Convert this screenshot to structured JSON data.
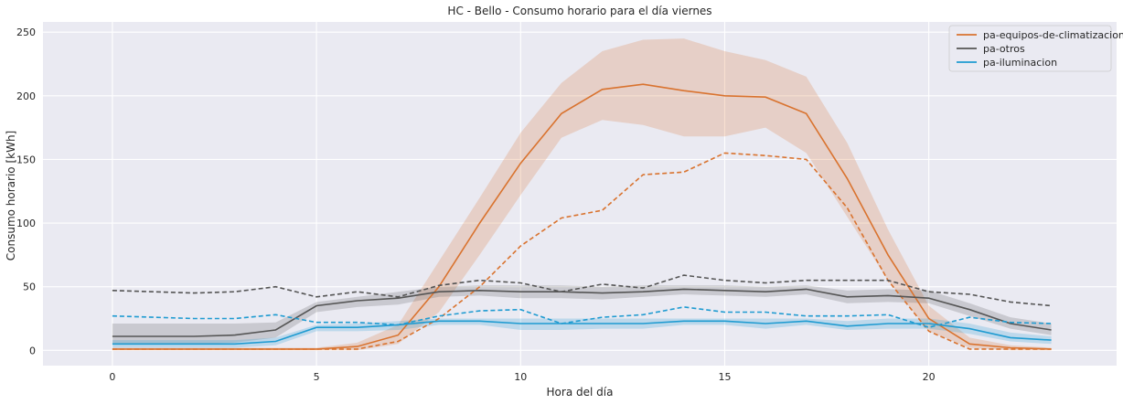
{
  "chart_data": {
    "type": "line",
    "title": "HC - Bello - Consumo horario para el día viernes",
    "xlabel": "Hora del día",
    "ylabel": "Consumo horario [kWh]",
    "xlim": [
      -1.7,
      24.6
    ],
    "ylim": [
      -12,
      258
    ],
    "xticks": [
      0,
      5,
      10,
      15,
      20
    ],
    "yticks": [
      0,
      50,
      100,
      150,
      200,
      250
    ],
    "grid": true,
    "legend_position": "top-right",
    "x": [
      0,
      1,
      2,
      3,
      4,
      5,
      6,
      7,
      8,
      9,
      10,
      11,
      12,
      13,
      14,
      15,
      16,
      17,
      18,
      19,
      20,
      21,
      22,
      23
    ],
    "series": [
      {
        "name": "pa-equipos-de-climatizacion",
        "color": "#d9732f",
        "mean": [
          1,
          1,
          1,
          1,
          1,
          1,
          3,
          12,
          50,
          100,
          147,
          186,
          205,
          209,
          204,
          200,
          199,
          186,
          135,
          75,
          25,
          5,
          2,
          1
        ],
        "lower": [
          0,
          0,
          0,
          0,
          0,
          0,
          0,
          5,
          30,
          75,
          122,
          167,
          181,
          177,
          168,
          168,
          175,
          155,
          105,
          55,
          15,
          2,
          0,
          0
        ],
        "upper": [
          2,
          2,
          2,
          2,
          2,
          2,
          6,
          20,
          70,
          120,
          171,
          210,
          235,
          244,
          245,
          235,
          228,
          215,
          163,
          95,
          35,
          10,
          4,
          2
        ],
        "dashed": [
          1,
          1,
          1,
          1,
          1,
          1,
          1,
          7,
          25,
          50,
          82,
          104,
          110,
          138,
          140,
          155,
          153,
          150,
          112,
          55,
          15,
          1,
          1,
          1
        ]
      },
      {
        "name": "pa-otros",
        "color": "#555555",
        "mean": [
          11,
          11,
          11,
          12,
          16,
          35,
          39,
          41,
          46,
          47,
          46,
          46,
          45,
          46,
          48,
          47,
          46,
          48,
          42,
          43,
          41,
          32,
          21,
          16
        ],
        "lower": [
          5,
          5,
          5,
          6,
          10,
          30,
          34,
          36,
          42,
          43,
          41,
          41,
          40,
          42,
          44,
          43,
          42,
          44,
          37,
          38,
          37,
          27,
          17,
          12
        ],
        "upper": [
          21,
          21,
          21,
          21,
          22,
          38,
          42,
          46,
          50,
          51,
          51,
          51,
          50,
          51,
          51,
          51,
          50,
          51,
          47,
          48,
          47,
          37,
          26,
          21
        ],
        "dashed": [
          47,
          46,
          45,
          46,
          50,
          42,
          46,
          42,
          51,
          55,
          53,
          46,
          52,
          49,
          59,
          55,
          53,
          55,
          55,
          55,
          46,
          44,
          38,
          35
        ]
      },
      {
        "name": "pa-iluminacion",
        "color": "#1f9bd1",
        "mean": [
          5,
          5,
          5,
          5,
          7,
          18,
          18,
          20,
          23,
          23,
          21,
          21,
          21,
          21,
          23,
          23,
          21,
          23,
          19,
          21,
          21,
          17,
          10,
          8
        ],
        "lower": [
          2,
          2,
          2,
          2,
          4,
          15,
          15,
          16,
          20,
          20,
          16,
          16,
          17,
          17,
          20,
          20,
          17,
          20,
          16,
          17,
          17,
          13,
          7,
          5
        ],
        "upper": [
          8,
          8,
          8,
          8,
          10,
          20,
          21,
          23,
          25,
          25,
          25,
          25,
          25,
          25,
          25,
          25,
          25,
          25,
          23,
          25,
          25,
          21,
          14,
          11
        ],
        "dashed": [
          27,
          26,
          25,
          25,
          28,
          22,
          22,
          20,
          27,
          31,
          32,
          21,
          26,
          28,
          34,
          30,
          30,
          27,
          27,
          28,
          18,
          26,
          22,
          21
        ]
      }
    ]
  }
}
